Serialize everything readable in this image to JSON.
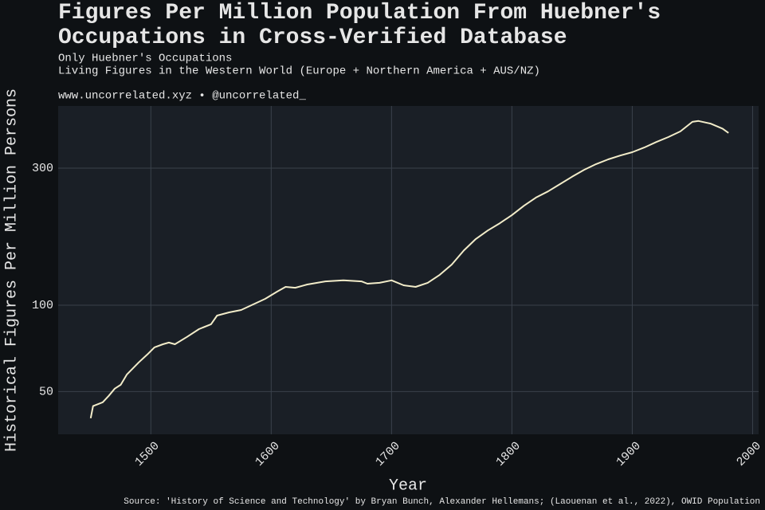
{
  "chart_data": {
    "type": "line",
    "title": "Figures Per Million Population From Huebner's Occupations in Cross-Verified Database",
    "subtitle": [
      "Only Huebner's Occupations",
      "Living Figures in the Western World (Europe + Northern America + AUS/NZ)"
    ],
    "credit": "www.uncorrelated.xyz • @uncorrelated_",
    "source": "Source: 'History of Science and Technology' by Bryan Bunch, Alexander Hellemans; (Laouenan et al., 2022), OWID Population",
    "x_label": "Year",
    "y_label": "Historical Figures Per Million Persons",
    "x": [
      1450,
      1452,
      1460,
      1465,
      1470,
      1475,
      1480,
      1490,
      1497,
      1503,
      1510,
      1515,
      1520,
      1530,
      1540,
      1550,
      1555,
      1565,
      1575,
      1585,
      1595,
      1605,
      1612,
      1620,
      1630,
      1645,
      1660,
      1675,
      1680,
      1690,
      1700,
      1710,
      1720,
      1730,
      1740,
      1750,
      1760,
      1770,
      1780,
      1790,
      1800,
      1810,
      1820,
      1830,
      1840,
      1850,
      1860,
      1870,
      1880,
      1890,
      1900,
      1910,
      1920,
      1930,
      1940,
      1950,
      1955,
      1965,
      1975,
      1980
    ],
    "series": [
      {
        "name": "Figures per million",
        "color": "#f2ecc9",
        "values": [
          40.4,
          44.5,
          45.9,
          48.3,
          51.2,
          52.8,
          57.3,
          63.2,
          67.3,
          71.3,
          73.1,
          74.1,
          73.1,
          77.5,
          82.5,
          85.8,
          92,
          94.4,
          96.2,
          100.6,
          105.2,
          111.5,
          115.8,
          115,
          118,
          121,
          122,
          121,
          118.8,
          119.6,
          122,
          117.3,
          115.8,
          119.6,
          127.5,
          138.5,
          155,
          170,
          182,
          193,
          206,
          222,
          237,
          249,
          264,
          280,
          296,
          310,
          322,
          332,
          341,
          354,
          370,
          385,
          403,
          435,
          438,
          429,
          412,
          398
        ]
      }
    ],
    "xlim": [
      1423,
      2005
    ],
    "xticks": [
      1500,
      1600,
      1700,
      1800,
      1900,
      2000
    ],
    "ylim": [
      35.5,
      494
    ],
    "yticks": [
      50,
      100,
      300
    ],
    "log_y": true,
    "grid": true
  }
}
